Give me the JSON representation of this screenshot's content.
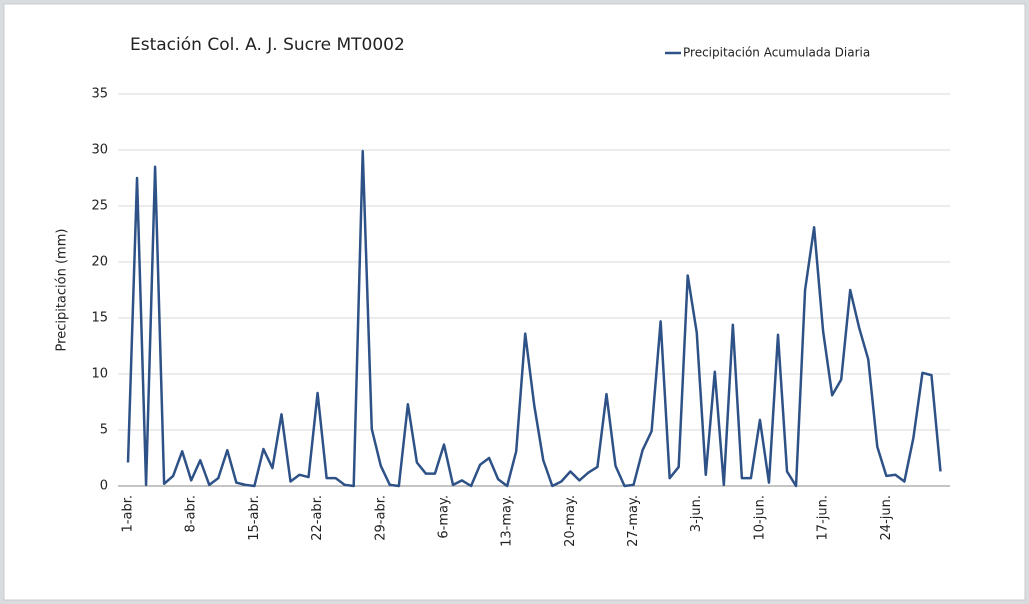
{
  "chart_data": {
    "type": "line",
    "title": "Estación Col. A.  J. Sucre MT0002",
    "y_label": "Precipitación (mm)",
    "legend": "top-right",
    "grid": true,
    "categories": [
      "1-abr.",
      null,
      null,
      null,
      null,
      null,
      null,
      "8-abr.",
      null,
      null,
      null,
      null,
      null,
      null,
      "15-abr.",
      null,
      null,
      null,
      null,
      null,
      null,
      "22-abr.",
      null,
      null,
      null,
      null,
      null,
      null,
      "29-abr.",
      null,
      null,
      null,
      null,
      null,
      null,
      "6-may.",
      null,
      null,
      null,
      null,
      null,
      null,
      "13-may.",
      null,
      null,
      null,
      null,
      null,
      null,
      "20-may.",
      null,
      null,
      null,
      null,
      null,
      null,
      "27-may.",
      null,
      null,
      null,
      null,
      null,
      null,
      "3-jun.",
      null,
      null,
      null,
      null,
      null,
      null,
      "10-jun.",
      null,
      null,
      null,
      null,
      null,
      null,
      "17-jun.",
      null,
      null,
      null,
      null,
      null,
      null,
      "24-jun.",
      null,
      null,
      null,
      null,
      null,
      null
    ],
    "series": [
      {
        "name": "Precipitación Acumulada Diaria",
        "color": "#2e5287",
        "values": [
          2.1,
          27.5,
          0.1,
          28.5,
          0.2,
          0.9,
          3.1,
          0.5,
          2.3,
          0.1,
          0.7,
          3.2,
          0.3,
          0.1,
          0.0,
          3.3,
          1.6,
          6.4,
          0.4,
          1.0,
          0.8,
          8.3,
          0.7,
          0.7,
          0.1,
          0.0,
          29.9,
          5.1,
          1.8,
          0.1,
          0.0,
          7.3,
          2.1,
          1.1,
          1.1,
          3.7,
          0.1,
          0.5,
          0.0,
          1.9,
          2.5,
          0.6,
          0.0,
          3.1,
          13.6,
          7.2,
          2.3,
          0.0,
          0.4,
          1.3,
          0.5,
          1.2,
          1.7,
          8.2,
          1.8,
          0.0,
          0.1,
          3.2,
          4.9,
          14.7,
          0.7,
          1.7,
          18.8,
          13.7,
          1.0,
          10.2,
          0.1,
          14.4,
          0.7,
          0.7,
          5.9,
          0.3,
          13.5,
          1.3,
          0.0,
          17.5,
          23.1,
          13.8,
          8.1,
          9.5,
          17.5,
          14.1,
          11.3,
          3.5,
          0.9,
          1.0,
          0.4,
          4.3,
          10.1,
          9.9,
          1.3
        ]
      }
    ],
    "ylim": [
      0,
      35
    ],
    "yticks": [
      0,
      5,
      10,
      15,
      20,
      25,
      30,
      35
    ]
  }
}
